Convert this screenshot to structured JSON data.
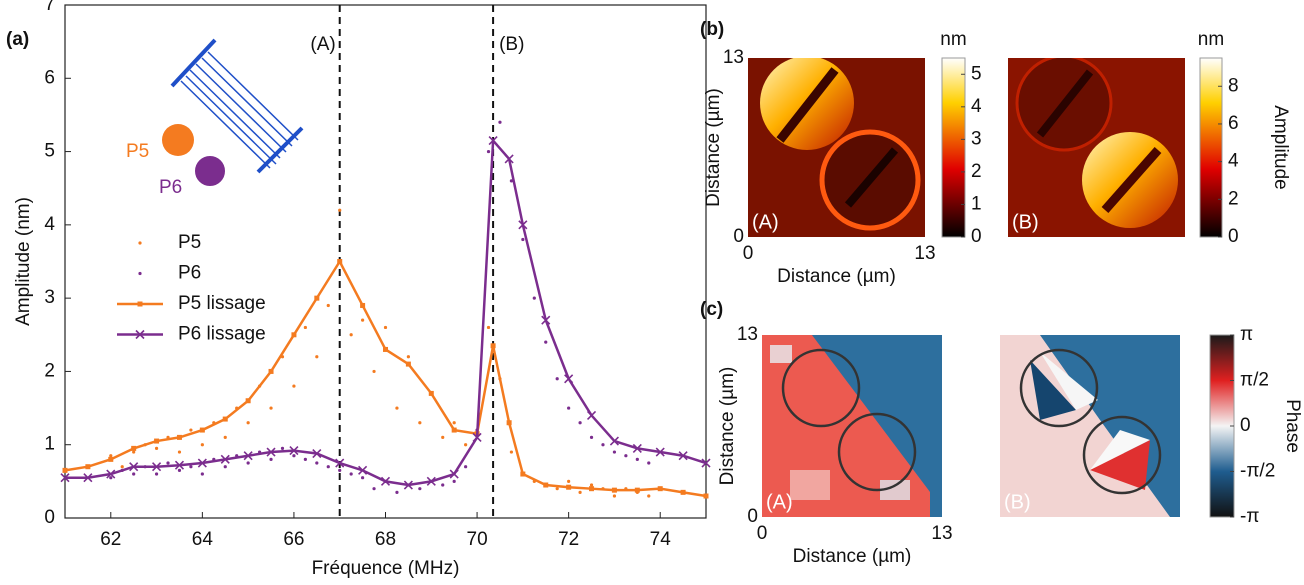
{
  "chart_data": [
    {
      "type": "line",
      "panel_label": "(a)",
      "xlabel": "Fréquence (MHz)",
      "ylabel": "Amplitude (nm)",
      "xlim": [
        61,
        75
      ],
      "xticks": [
        62,
        64,
        66,
        68,
        70,
        72,
        74
      ],
      "ylim": [
        0,
        7
      ],
      "yticks": [
        0,
        1,
        2,
        3,
        4,
        5,
        6,
        7
      ],
      "legend": "center-left",
      "series": [
        {
          "name": "P5",
          "color": "#f47b20",
          "marker": "dot",
          "line": false,
          "x": [
            62,
            62.25,
            62.5,
            62.75,
            63,
            63.25,
            63.5,
            63.75,
            64,
            64.25,
            64.5,
            64.75,
            65,
            65.25,
            65.5,
            65.75,
            66,
            66.25,
            66.5,
            66.75,
            67,
            67.25,
            67.5,
            67.75,
            68,
            68.25,
            68.5,
            68.75,
            69,
            69.25,
            69.5,
            69.75,
            70,
            70.25,
            70.5,
            70.75,
            71,
            71.25,
            71.5,
            71.75,
            72,
            72.25,
            72.5,
            72.75,
            73,
            73.25,
            73.5,
            73.75
          ],
          "values": [
            0.85,
            0.7,
            0.9,
            1.0,
            0.95,
            1.1,
            0.9,
            1.2,
            1.0,
            1.3,
            1.1,
            1.5,
            1.3,
            1.8,
            1.5,
            2.2,
            1.8,
            2.6,
            2.2,
            2.9,
            4.2,
            2.5,
            2.7,
            2.0,
            2.6,
            1.5,
            2.2,
            1.3,
            1.7,
            1.1,
            1.3,
            1.0,
            1.2,
            2.6,
            1.9,
            0.9,
            0.6,
            0.5,
            0.45,
            0.4,
            0.5,
            0.35,
            0.45,
            0.4,
            0.3,
            0.4,
            0.35,
            0.3
          ]
        },
        {
          "name": "P6",
          "color": "#7b2d8e",
          "marker": "dot",
          "line": false,
          "x": [
            62,
            62.25,
            62.5,
            62.75,
            63,
            63.25,
            63.5,
            63.75,
            64,
            64.25,
            64.5,
            64.75,
            65,
            65.25,
            65.5,
            65.75,
            66,
            66.25,
            66.5,
            66.75,
            67,
            67.25,
            67.5,
            67.75,
            68,
            68.25,
            68.5,
            68.75,
            69,
            69.25,
            69.5,
            69.75,
            70,
            70.25,
            70.5,
            70.75,
            71,
            71.25,
            71.5,
            71.75,
            72,
            72.25,
            72.5,
            72.75,
            73,
            73.25,
            73.5,
            73.75
          ],
          "values": [
            0.55,
            0.65,
            0.6,
            0.7,
            0.6,
            0.75,
            0.65,
            0.7,
            0.6,
            0.8,
            0.7,
            0.85,
            0.75,
            0.9,
            0.8,
            0.95,
            0.85,
            0.8,
            0.75,
            0.7,
            0.65,
            0.6,
            0.55,
            0.4,
            0.5,
            0.35,
            0.45,
            0.4,
            0.5,
            0.45,
            0.5,
            0.7,
            1.2,
            5.0,
            5.4,
            4.6,
            3.8,
            3.0,
            2.4,
            1.9,
            1.5,
            1.3,
            1.1,
            1.0,
            0.9,
            0.85,
            0.8,
            0.75
          ]
        },
        {
          "name": "P5 lissage",
          "color": "#f47b20",
          "marker": "square",
          "line": true,
          "x": [
            61,
            61.5,
            62,
            62.5,
            63,
            63.5,
            64,
            64.5,
            65,
            65.5,
            66,
            66.5,
            67,
            67.5,
            68,
            68.5,
            69,
            69.5,
            70,
            70.35,
            70.7,
            71,
            71.5,
            72,
            72.5,
            73,
            73.5,
            74,
            74.5,
            75
          ],
          "values": [
            0.65,
            0.7,
            0.8,
            0.95,
            1.05,
            1.1,
            1.2,
            1.35,
            1.6,
            2.0,
            2.5,
            3.0,
            3.5,
            2.9,
            2.3,
            2.1,
            1.7,
            1.2,
            1.15,
            2.35,
            1.3,
            0.6,
            0.45,
            0.42,
            0.4,
            0.38,
            0.38,
            0.4,
            0.35,
            0.3
          ]
        },
        {
          "name": "P6 lissage",
          "color": "#7b2d8e",
          "marker": "x",
          "line": true,
          "x": [
            61,
            61.5,
            62,
            62.5,
            63,
            63.5,
            64,
            64.5,
            65,
            65.5,
            66,
            66.5,
            67,
            67.5,
            68,
            68.5,
            69,
            69.5,
            70,
            70.35,
            70.7,
            71,
            71.5,
            72,
            72.5,
            73,
            73.5,
            74,
            74.5,
            75
          ],
          "values": [
            0.55,
            0.55,
            0.6,
            0.7,
            0.7,
            0.72,
            0.75,
            0.8,
            0.85,
            0.9,
            0.92,
            0.88,
            0.75,
            0.65,
            0.5,
            0.45,
            0.5,
            0.6,
            1.1,
            5.15,
            4.9,
            4.0,
            2.7,
            1.9,
            1.4,
            1.05,
            0.95,
            0.9,
            0.85,
            0.75
          ]
        }
      ],
      "vlines": [
        {
          "x": 67,
          "label": "(A)"
        },
        {
          "x": 70.35,
          "label": "(B)"
        }
      ],
      "inset_labels": [
        "P5",
        "P6"
      ]
    },
    {
      "type": "heatmap",
      "panel_label": "(b)",
      "label": "(A)",
      "xlabel": "Distance (µm)",
      "ylabel": "Distance (µm)",
      "xlim": [
        0,
        13
      ],
      "xticks": [
        0,
        13
      ],
      "ylim": [
        0,
        13
      ],
      "yticks": [
        0,
        13
      ],
      "colormap": "hot",
      "colorbar": {
        "title": "nm",
        "lim": [
          0,
          5.5
        ],
        "ticks": [
          0,
          1,
          2,
          3,
          4,
          5
        ]
      }
    },
    {
      "type": "heatmap",
      "label": "(B)",
      "colormap": "hot",
      "colorbar": {
        "title": "nm",
        "label": "Amplitude",
        "lim": [
          0,
          9.5
        ],
        "ticks": [
          0,
          2,
          4,
          6,
          8
        ]
      }
    },
    {
      "type": "heatmap",
      "panel_label": "(c)",
      "label": "(A)",
      "xlabel": "Distance (µm)",
      "ylabel": "Distance (µm)",
      "xlim": [
        0,
        13
      ],
      "xticks": [
        0,
        13
      ],
      "ylim": [
        0,
        13
      ],
      "yticks": [
        0,
        13
      ],
      "colormap": "phase"
    },
    {
      "type": "heatmap",
      "label": "(B)",
      "colormap": "phase",
      "colorbar": {
        "label": "Phase",
        "lim": [
          -3.1416,
          3.1416
        ],
        "ticks": [
          {
            "value": 3.1416,
            "label": "π"
          },
          {
            "value": 1.5708,
            "label": "π/2"
          },
          0,
          {
            "value": -1.5708,
            "label": "-π/2"
          },
          {
            "value": -3.1416,
            "label": "-π"
          }
        ]
      }
    }
  ]
}
